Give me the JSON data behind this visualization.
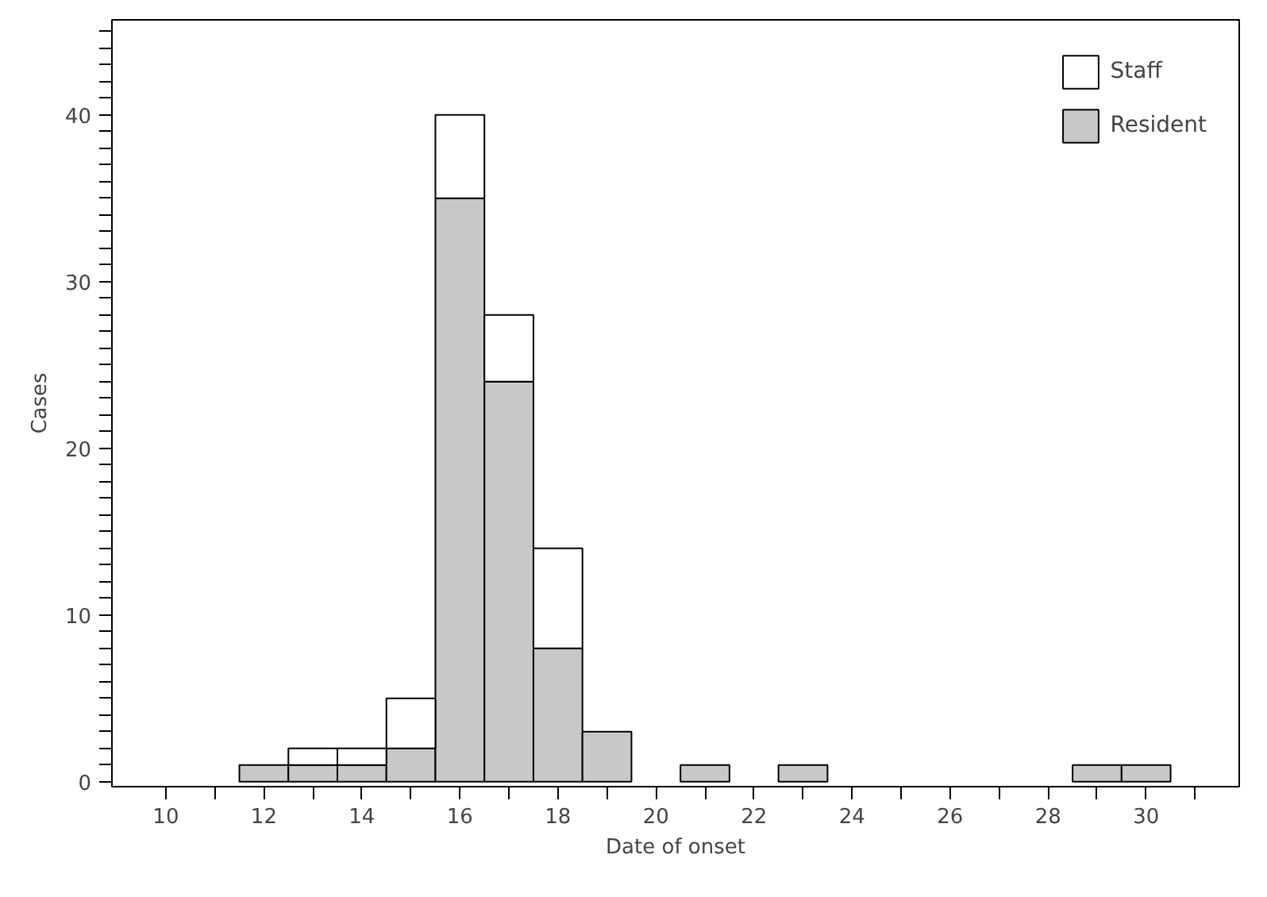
{
  "chart_data": {
    "type": "bar",
    "stacked": true,
    "xlabel": "Date of onset",
    "ylabel": "Cases",
    "x": [
      12,
      13,
      14,
      15,
      16,
      17,
      18,
      19,
      21,
      23,
      29,
      30
    ],
    "series": [
      {
        "name": "Resident",
        "color": "#c8c8c8",
        "values": [
          1,
          1,
          1,
          2,
          35,
          24,
          8,
          3,
          1,
          1,
          1,
          1
        ]
      },
      {
        "name": "Staff",
        "color": "#ffffff",
        "values": [
          null,
          1,
          1,
          3,
          5,
          4,
          6,
          null,
          null,
          null,
          null,
          null
        ]
      }
    ],
    "xlim": [
      8.9,
      31.9
    ],
    "ylim": [
      -0.3,
      45.7
    ],
    "xticks": [
      10,
      {
        "value": 11,
        "label": null
      },
      12,
      {
        "value": 13,
        "label": null
      },
      14,
      {
        "value": 15,
        "label": null
      },
      16,
      {
        "value": 17,
        "label": null
      },
      18,
      {
        "value": 19,
        "label": null
      },
      20,
      {
        "value": 21,
        "label": null
      },
      22,
      {
        "value": 23,
        "label": null
      },
      24,
      {
        "value": 25,
        "label": null
      },
      26,
      {
        "value": 27,
        "label": null
      },
      28,
      {
        "value": 29,
        "label": null
      },
      30,
      {
        "value": 31,
        "label": null
      }
    ],
    "yticks": [
      0,
      {
        "value": 1,
        "label": null
      },
      {
        "value": 2,
        "label": null
      },
      {
        "value": 3,
        "label": null
      },
      {
        "value": 4,
        "label": null
      },
      {
        "value": 5,
        "label": null
      },
      {
        "value": 6,
        "label": null
      },
      {
        "value": 7,
        "label": null
      },
      {
        "value": 8,
        "label": null
      },
      {
        "value": 9,
        "label": null
      },
      10,
      {
        "value": 11,
        "label": null
      },
      {
        "value": 12,
        "label": null
      },
      {
        "value": 13,
        "label": null
      },
      {
        "value": 14,
        "label": null
      },
      {
        "value": 15,
        "label": null
      },
      {
        "value": 16,
        "label": null
      },
      {
        "value": 17,
        "label": null
      },
      {
        "value": 18,
        "label": null
      },
      {
        "value": 19,
        "label": null
      },
      20,
      {
        "value": 21,
        "label": null
      },
      {
        "value": 22,
        "label": null
      },
      {
        "value": 23,
        "label": null
      },
      {
        "value": 24,
        "label": null
      },
      {
        "value": 25,
        "label": null
      },
      {
        "value": 26,
        "label": null
      },
      {
        "value": 27,
        "label": null
      },
      {
        "value": 28,
        "label": null
      },
      {
        "value": 29,
        "label": null
      },
      30,
      {
        "value": 31,
        "label": null
      },
      {
        "value": 32,
        "label": null
      },
      {
        "value": 33,
        "label": null
      },
      {
        "value": 34,
        "label": null
      },
      {
        "value": 35,
        "label": null
      },
      {
        "value": 36,
        "label": null
      },
      {
        "value": 37,
        "label": null
      },
      {
        "value": 38,
        "label": null
      },
      {
        "value": 39,
        "label": null
      },
      40,
      {
        "value": 41,
        "label": null
      },
      {
        "value": 42,
        "label": null
      },
      {
        "value": 43,
        "label": null
      },
      {
        "value": 44,
        "label": null
      },
      {
        "value": 45,
        "label": null
      }
    ],
    "grid": false,
    "legend": "top right"
  }
}
